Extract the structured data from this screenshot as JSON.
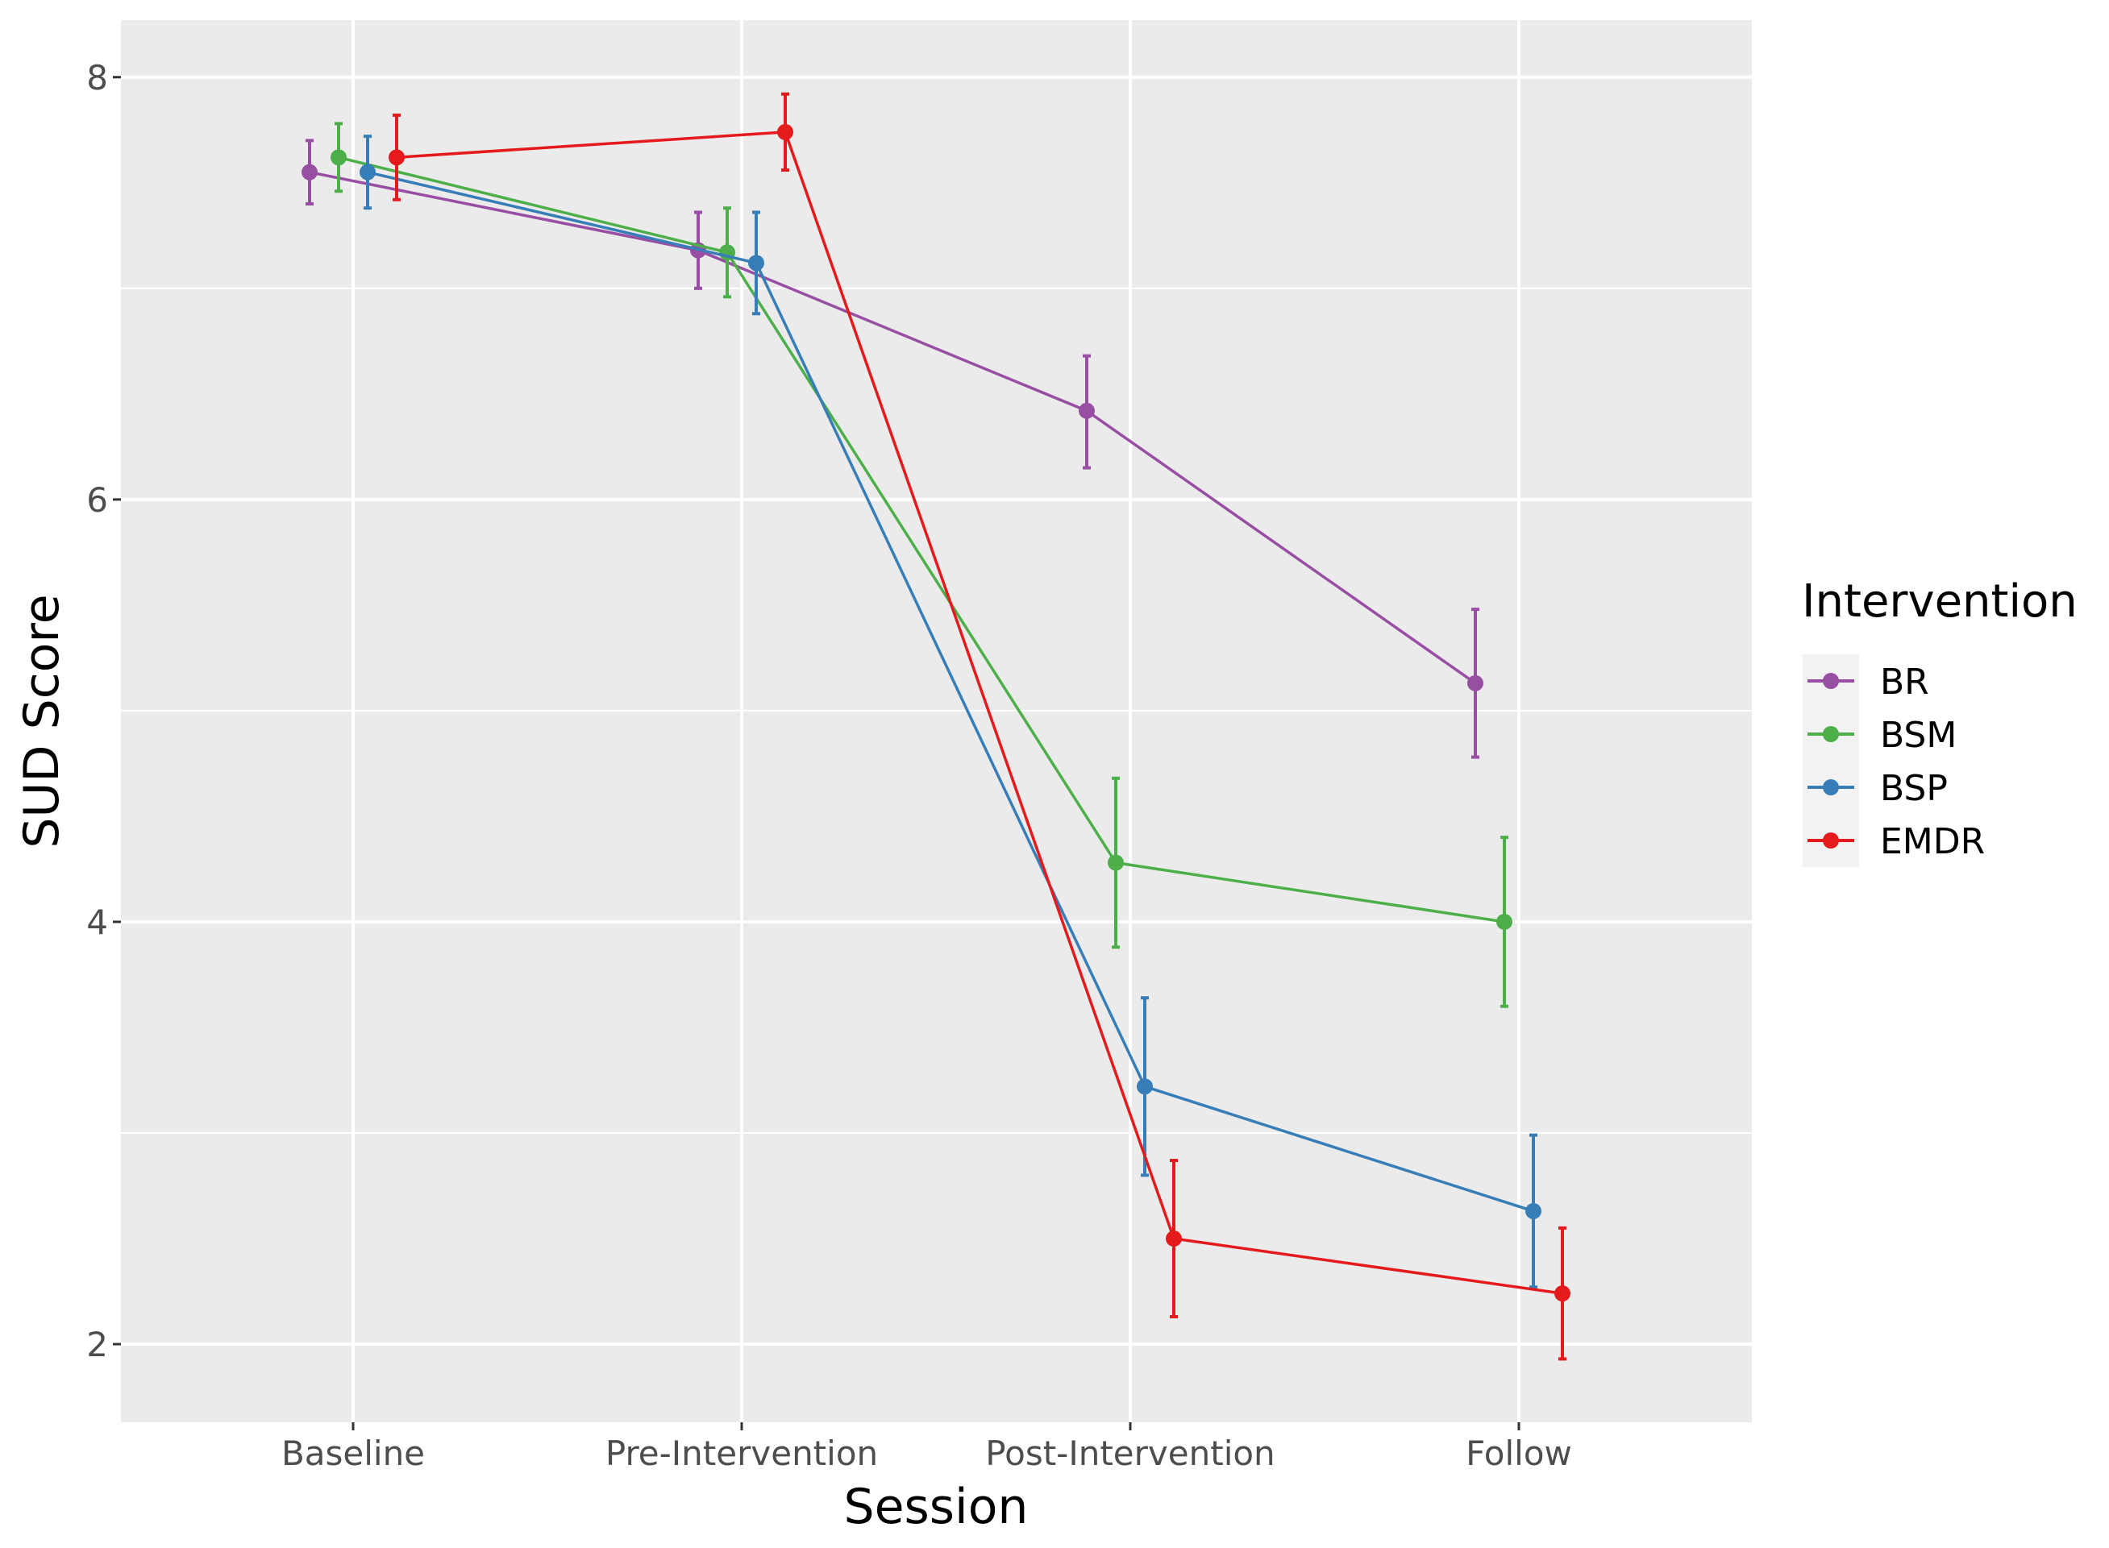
{
  "chart_data": {
    "type": "line",
    "title": "",
    "xlabel": "Session",
    "ylabel": "SUD Score",
    "categories": [
      "Baseline",
      "Pre-Intervention",
      "Post-Intervention",
      "Follow"
    ],
    "ylim": [
      1.63,
      8.27
    ],
    "yticks": [
      "2",
      "4",
      "6",
      "8"
    ],
    "legend_title": "Intervention",
    "legend_position": "right",
    "grid": true,
    "series": [
      {
        "name": "BR",
        "color": "#984EA3",
        "values": [
          7.55,
          7.18,
          6.42,
          5.13
        ],
        "lower": [
          7.4,
          7.0,
          6.15,
          4.78
        ],
        "upper": [
          7.7,
          7.36,
          6.68,
          5.48
        ]
      },
      {
        "name": "BSM",
        "color": "#4DAF4A",
        "values": [
          7.62,
          7.17,
          4.28,
          4.0
        ],
        "lower": [
          7.46,
          6.96,
          3.88,
          3.6
        ],
        "upper": [
          7.78,
          7.38,
          4.68,
          4.4
        ]
      },
      {
        "name": "BSP",
        "color": "#377EB8",
        "values": [
          7.55,
          7.12,
          3.22,
          2.63
        ],
        "lower": [
          7.38,
          6.88,
          2.8,
          2.27
        ],
        "upper": [
          7.72,
          7.36,
          3.64,
          2.99
        ]
      },
      {
        "name": "EMDR",
        "color": "#E41A1C",
        "values": [
          7.62,
          7.74,
          2.5,
          2.24
        ],
        "lower": [
          7.42,
          7.56,
          2.13,
          1.93
        ],
        "upper": [
          7.82,
          7.92,
          2.87,
          2.55
        ]
      }
    ]
  }
}
